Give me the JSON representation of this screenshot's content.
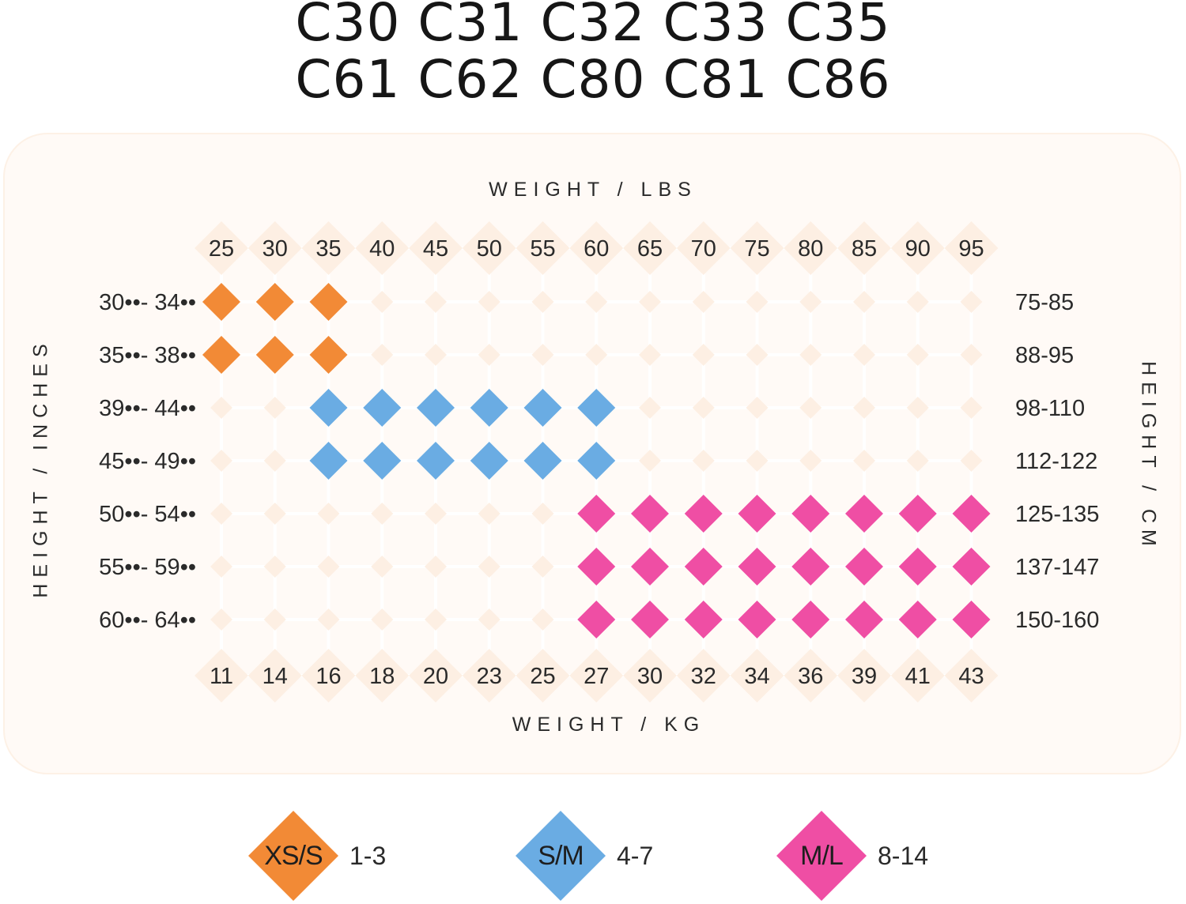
{
  "title": {
    "line1": "C30 C31 C32 C33 C35",
    "line2": "C61 C62 C80 C81 C86"
  },
  "chart_data": {
    "type": "table",
    "x_top_title": "WEIGHT / LBS",
    "x_bottom_title": "WEIGHT / KG",
    "y_left_title": "HEIGHT / INCHES",
    "y_right_title": "HEIGHT / CM",
    "weight_lbs": [
      "25",
      "30",
      "35",
      "40",
      "45",
      "50",
      "55",
      "60",
      "65",
      "70",
      "75",
      "80",
      "85",
      "90",
      "95"
    ],
    "weight_kg": [
      "11",
      "14",
      "16",
      "18",
      "20",
      "23",
      "25",
      "27",
      "30",
      "32",
      "34",
      "36",
      "39",
      "41",
      "43"
    ],
    "height_inches": [
      "30••- 34••",
      "35••- 38••",
      "39••- 44••",
      "45••- 49••",
      "50••- 54••",
      "55••- 59••",
      "60••- 64••"
    ],
    "height_cm": [
      "75-85",
      "88-95",
      "98-110",
      "112-122",
      "125-135",
      "137-147",
      "150-160"
    ],
    "cells": [
      [
        "XS/S",
        "XS/S",
        "XS/S",
        null,
        null,
        null,
        null,
        null,
        null,
        null,
        null,
        null,
        null,
        null,
        null
      ],
      [
        "XS/S",
        "XS/S",
        "XS/S",
        null,
        null,
        null,
        null,
        null,
        null,
        null,
        null,
        null,
        null,
        null,
        null
      ],
      [
        null,
        null,
        "S/M",
        "S/M",
        "S/M",
        "S/M",
        "S/M",
        "S/M",
        null,
        null,
        null,
        null,
        null,
        null,
        null
      ],
      [
        null,
        null,
        "S/M",
        "S/M",
        "S/M",
        "S/M",
        "S/M",
        "S/M",
        null,
        null,
        null,
        null,
        null,
        null,
        null
      ],
      [
        null,
        null,
        null,
        null,
        null,
        null,
        null,
        "M/L",
        "M/L",
        "M/L",
        "M/L",
        "M/L",
        "M/L",
        "M/L",
        "M/L"
      ],
      [
        null,
        null,
        null,
        null,
        null,
        null,
        null,
        "M/L",
        "M/L",
        "M/L",
        "M/L",
        "M/L",
        "M/L",
        "M/L",
        "M/L"
      ],
      [
        null,
        null,
        null,
        null,
        null,
        null,
        null,
        "M/L",
        "M/L",
        "M/L",
        "M/L",
        "M/L",
        "M/L",
        "M/L",
        "M/L"
      ]
    ],
    "legend": [
      {
        "code": "XS/S",
        "range": "1-3",
        "color": "#f28a36"
      },
      {
        "code": "S/M",
        "range": "4-7",
        "color": "#6aace3"
      },
      {
        "code": "M/L",
        "range": "8-14",
        "color": "#ef4ea4"
      }
    ]
  },
  "colors": {
    "panel_bg": "#fffaf6",
    "grid_line": "#ffffff",
    "empty_diamond": "#fdefe3",
    "text": "#2a2a2a"
  }
}
